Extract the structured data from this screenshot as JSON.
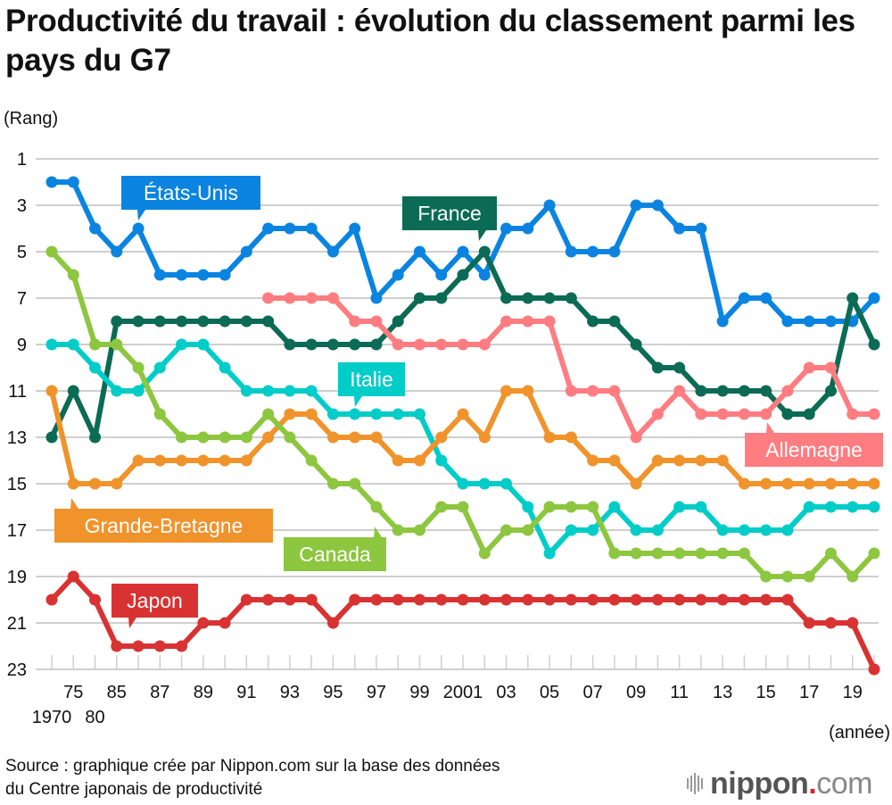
{
  "header": {
    "title": "Productivité du travail : évolution du classement parmi les pays du G7"
  },
  "footer": {
    "source_line1": "Source : graphique crée par Nippon.com sur la base des données",
    "source_line2": "du Centre japonais de productivité",
    "logo_main": "nippon",
    "logo_dot": ".",
    "logo_suffix": "com"
  },
  "chart_data": {
    "type": "line",
    "title": "Productivité du travail : évolution du classement parmi les pays du G7",
    "ylabel": "(Rang)",
    "xlabel": "(année)",
    "ylim": [
      1,
      23
    ],
    "y_inverted": true,
    "yticks": [
      1,
      3,
      5,
      7,
      9,
      11,
      13,
      15,
      17,
      19,
      21,
      23
    ],
    "grid": true,
    "legend": "inline-labels",
    "x": [
      "1970",
      "1975",
      "1980",
      "1985",
      "1986",
      "1987",
      "1988",
      "1989",
      "1990",
      "1991",
      "1992",
      "1993",
      "1994",
      "1995",
      "1996",
      "1997",
      "1998",
      "1999",
      "2000",
      "2001",
      "2002",
      "2003",
      "2004",
      "2005",
      "2006",
      "2007",
      "2008",
      "2009",
      "2010",
      "2011",
      "2012",
      "2013",
      "2014",
      "2015",
      "2016",
      "2017",
      "2018",
      "2019",
      "2020"
    ],
    "xtick_labels": [
      {
        "label": "1970",
        "row": 2
      },
      {
        "label": "75",
        "row": 1
      },
      {
        "label": "80",
        "row": 2
      },
      {
        "label": "85",
        "row": 1
      },
      {
        "label": "87",
        "row": 1
      },
      {
        "label": "89",
        "row": 1
      },
      {
        "label": "91",
        "row": 1
      },
      {
        "label": "93",
        "row": 1
      },
      {
        "label": "95",
        "row": 1
      },
      {
        "label": "97",
        "row": 1
      },
      {
        "label": "99",
        "row": 1
      },
      {
        "label": "2001",
        "row": 1
      },
      {
        "label": "03",
        "row": 1
      },
      {
        "label": "05",
        "row": 1
      },
      {
        "label": "07",
        "row": 1
      },
      {
        "label": "09",
        "row": 1
      },
      {
        "label": "11",
        "row": 1
      },
      {
        "label": "13",
        "row": 1
      },
      {
        "label": "15",
        "row": 1
      },
      {
        "label": "17",
        "row": 1
      },
      {
        "label": "19",
        "row": 1
      }
    ],
    "series": [
      {
        "name": "États-Unis",
        "key": "usa",
        "color": "#0a84e0",
        "values": [
          2,
          2,
          4,
          5,
          4,
          6,
          6,
          6,
          6,
          5,
          4,
          4,
          4,
          5,
          4,
          7,
          6,
          5,
          6,
          5,
          6,
          4,
          4,
          3,
          5,
          5,
          5,
          3,
          3,
          4,
          4,
          8,
          7,
          7,
          8,
          8,
          8,
          8,
          7
        ]
      },
      {
        "name": "France",
        "key": "france",
        "color": "#0b6b54",
        "values": [
          13,
          11,
          13,
          8,
          8,
          8,
          8,
          8,
          8,
          8,
          8,
          9,
          9,
          9,
          9,
          9,
          8,
          7,
          7,
          6,
          5,
          7,
          7,
          7,
          7,
          8,
          8,
          9,
          10,
          10,
          11,
          11,
          11,
          11,
          12,
          12,
          11,
          7,
          9
        ]
      },
      {
        "name": "Allemagne",
        "key": "germany",
        "color": "#ff7c80",
        "values": [
          null,
          null,
          null,
          null,
          null,
          null,
          null,
          null,
          null,
          null,
          7,
          7,
          7,
          7,
          8,
          8,
          9,
          9,
          9,
          9,
          9,
          8,
          8,
          8,
          11,
          11,
          11,
          13,
          12,
          11,
          12,
          12,
          12,
          12,
          11,
          10,
          10,
          12,
          12
        ]
      },
      {
        "name": "Italie",
        "key": "italy",
        "color": "#00ccc8",
        "values": [
          9,
          9,
          10,
          11,
          11,
          10,
          9,
          9,
          10,
          11,
          11,
          11,
          11,
          12,
          12,
          12,
          12,
          12,
          14,
          15,
          15,
          15,
          16,
          18,
          17,
          17,
          16,
          17,
          17,
          16,
          16,
          17,
          17,
          17,
          17,
          16,
          16,
          16,
          16
        ]
      },
      {
        "name": "Grande-Bretagne",
        "key": "uk",
        "color": "#f0932b",
        "values": [
          11,
          15,
          15,
          15,
          14,
          14,
          14,
          14,
          14,
          14,
          13,
          12,
          12,
          13,
          13,
          13,
          14,
          14,
          13,
          12,
          13,
          11,
          11,
          13,
          13,
          14,
          14,
          15,
          14,
          14,
          14,
          14,
          15,
          15,
          15,
          15,
          15,
          15,
          15
        ]
      },
      {
        "name": "Canada",
        "key": "canada",
        "color": "#8dc63f",
        "values": [
          5,
          6,
          9,
          9,
          10,
          12,
          13,
          13,
          13,
          13,
          12,
          13,
          14,
          15,
          15,
          16,
          17,
          17,
          16,
          16,
          18,
          17,
          17,
          16,
          16,
          16,
          18,
          18,
          18,
          18,
          18,
          18,
          18,
          19,
          19,
          19,
          18,
          19,
          18
        ]
      },
      {
        "name": "Japon",
        "key": "japan",
        "color": "#d93232",
        "values": [
          20,
          19,
          20,
          22,
          22,
          22,
          22,
          21,
          21,
          20,
          20,
          20,
          20,
          21,
          20,
          20,
          20,
          20,
          20,
          20,
          20,
          20,
          20,
          20,
          20,
          20,
          20,
          20,
          20,
          20,
          20,
          20,
          20,
          20,
          20,
          21,
          21,
          21,
          23
        ]
      }
    ],
    "annotations": [
      {
        "text": "États-Unis",
        "series": "usa",
        "anchor_year": "1986",
        "position": "above"
      },
      {
        "text": "France",
        "series": "france",
        "anchor_year": "2002",
        "position": "above"
      },
      {
        "text": "Italie",
        "series": "italy",
        "anchor_year": "1996",
        "position": "above"
      },
      {
        "text": "Allemagne",
        "series": "germany",
        "anchor_year": "2015",
        "position": "below"
      },
      {
        "text": "Grande-Bretagne",
        "series": "uk",
        "anchor_year": "1975",
        "position": "below"
      },
      {
        "text": "Canada",
        "series": "canada",
        "anchor_year": "1997",
        "position": "below"
      },
      {
        "text": "Japon",
        "series": "japan",
        "anchor_year": "1985",
        "position": "above"
      }
    ]
  }
}
